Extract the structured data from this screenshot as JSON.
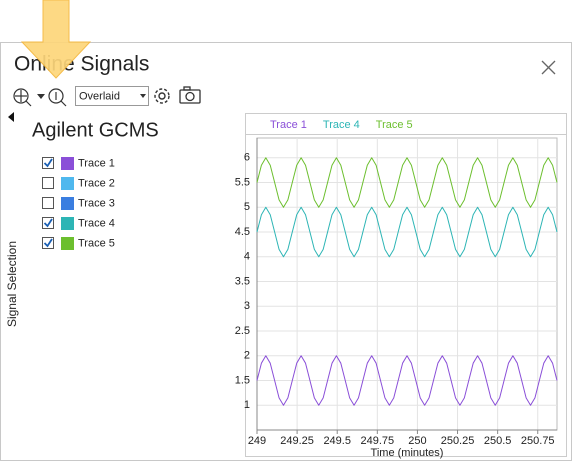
{
  "window": {
    "title": "Online Signals",
    "view_mode": "Overlaid"
  },
  "panel": {
    "title": "Agilent GCMS",
    "side_label": "Signal Selection",
    "signals": [
      {
        "label": "Trace 1",
        "checked": true,
        "color": "#8a4fd8"
      },
      {
        "label": "Trace 2",
        "checked": false,
        "color": "#4fb8ee"
      },
      {
        "label": "Trace 3",
        "checked": false,
        "color": "#3a7ee0"
      },
      {
        "label": "Trace 4",
        "checked": true,
        "color": "#2db5b5"
      },
      {
        "label": "Trace 5",
        "checked": true,
        "color": "#6cbf2e"
      }
    ]
  },
  "chart_data": {
    "type": "line",
    "x_label": "Time (minutes)",
    "x": [
      249,
      249.0275,
      249.055,
      249.0825,
      249.11,
      249.1375,
      249.165,
      249.1925,
      249.22,
      249.2475,
      249.275,
      249.3025,
      249.33,
      249.3575,
      249.385,
      249.4125,
      249.44,
      249.4675,
      249.495,
      249.5225,
      249.55,
      249.5775,
      249.605,
      249.6325,
      249.66,
      249.6875,
      249.715,
      249.7425,
      249.77,
      249.7975,
      249.825,
      249.8525,
      249.88,
      249.9075,
      249.935,
      249.9625,
      249.99,
      250.0175,
      250.045,
      250.0725,
      250.1,
      250.1275,
      250.155,
      250.1825,
      250.21,
      250.2375,
      250.265,
      250.2925,
      250.32,
      250.3475,
      250.375,
      250.4025,
      250.43,
      250.4575,
      250.485,
      250.5125,
      250.54,
      250.5675,
      250.595,
      250.6225,
      250.65,
      250.6775,
      250.705,
      250.7325,
      250.76,
      250.7875,
      250.815,
      250.8425,
      250.87
    ],
    "series": [
      {
        "name": "Trace 1",
        "color": "#8a4fd8",
        "values": [
          1.5,
          1.85,
          2,
          1.85,
          1.5,
          1.15,
          1,
          1.15,
          1.5,
          1.85,
          2,
          1.85,
          1.5,
          1.15,
          1,
          1.15,
          1.5,
          1.85,
          2,
          1.85,
          1.5,
          1.15,
          1,
          1.15,
          1.5,
          1.85,
          2,
          1.85,
          1.5,
          1.15,
          1,
          1.15,
          1.5,
          1.85,
          2,
          1.85,
          1.5,
          1.15,
          1,
          1.15,
          1.5,
          1.85,
          2,
          1.85,
          1.5,
          1.15,
          1,
          1.15,
          1.5,
          1.85,
          2,
          1.85,
          1.5,
          1.15,
          1,
          1.15,
          1.5,
          1.85,
          2,
          1.85,
          1.5,
          1.15,
          1,
          1.15,
          1.5,
          1.85,
          2,
          1.85,
          1.5
        ]
      },
      {
        "name": "Trace 4",
        "color": "#2db5b5",
        "values": [
          4.5,
          4.85,
          5,
          4.85,
          4.5,
          4.15,
          4,
          4.15,
          4.5,
          4.85,
          5,
          4.85,
          4.5,
          4.15,
          4,
          4.15,
          4.5,
          4.85,
          5,
          4.85,
          4.5,
          4.15,
          4,
          4.15,
          4.5,
          4.85,
          5,
          4.85,
          4.5,
          4.15,
          4,
          4.15,
          4.5,
          4.85,
          5,
          4.85,
          4.5,
          4.15,
          4,
          4.15,
          4.5,
          4.85,
          5,
          4.85,
          4.5,
          4.15,
          4,
          4.15,
          4.5,
          4.85,
          5,
          4.85,
          4.5,
          4.15,
          4,
          4.15,
          4.5,
          4.85,
          5,
          4.85,
          4.5,
          4.15,
          4,
          4.15,
          4.5,
          4.85,
          5,
          4.85,
          4.5
        ]
      },
      {
        "name": "Trace 5",
        "color": "#6cbf2e",
        "values": [
          5.5,
          5.85,
          6,
          5.85,
          5.5,
          5.15,
          5,
          5.15,
          5.5,
          5.85,
          6,
          5.85,
          5.5,
          5.15,
          5,
          5.15,
          5.5,
          5.85,
          6,
          5.85,
          5.5,
          5.15,
          5,
          5.15,
          5.5,
          5.85,
          6,
          5.85,
          5.5,
          5.15,
          5,
          5.15,
          5.5,
          5.85,
          6,
          5.85,
          5.5,
          5.15,
          5,
          5.15,
          5.5,
          5.85,
          6,
          5.85,
          5.5,
          5.15,
          5,
          5.15,
          5.5,
          5.85,
          6,
          5.85,
          5.5,
          5.15,
          5,
          5.15,
          5.5,
          5.85,
          6,
          5.85,
          5.5,
          5.15,
          5,
          5.15,
          5.5,
          5.85,
          6,
          5.85,
          5.5
        ]
      }
    ],
    "xlim": [
      249,
      250.87
    ],
    "ylim": [
      0.5,
      6.4
    ],
    "xticks": [
      249,
      249.25,
      249.5,
      249.75,
      250,
      250.25,
      250.5,
      250.75
    ],
    "yticks": [
      1,
      1.5,
      2,
      2.5,
      3,
      3.5,
      4,
      4.5,
      5,
      5.5,
      6
    ],
    "grid": true
  }
}
